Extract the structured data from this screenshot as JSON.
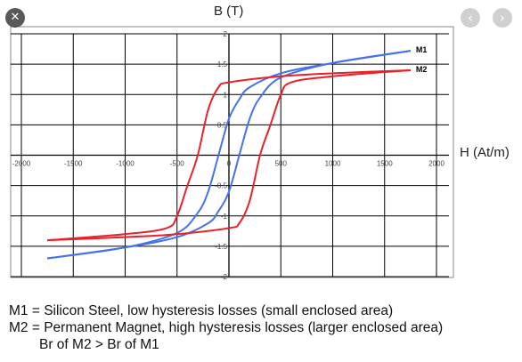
{
  "controls": {
    "close": "✕",
    "prev": "‹",
    "next": "›"
  },
  "captions": [
    "M1 = Silicon Steel, low hysteresis losses (small enclosed area)",
    "M2 = Permanent Magnet, high hysteresis losses (larger enclosed area)",
    "Br of M2 > Br of M1"
  ],
  "colors": {
    "m1": "#4472e8",
    "m2": "#e8212a",
    "grid": "#000000",
    "axis_labels": "#444444"
  },
  "chart_data": {
    "type": "line",
    "xlabel": "H (At/m)",
    "ylabel": "B (T)",
    "xlim": [
      -2000,
      2000
    ],
    "ylim": [
      -2,
      2
    ],
    "x_ticks": [
      "-2000",
      "-1500",
      "-1000",
      "-500",
      "0",
      "500",
      "1000",
      "1500",
      "2000"
    ],
    "y_ticks": [
      "2",
      "1.5",
      "1",
      "0.5",
      "0",
      "-0.5",
      "-1",
      "-1.5",
      "-2"
    ],
    "grid": true,
    "legend": "end-of-line labels",
    "series": [
      {
        "name": "M1",
        "upper": [
          [
            -1750,
            -1.7
          ],
          [
            -1000,
            -1.52
          ],
          [
            -500,
            -1.28
          ],
          [
            -300,
            -0.95
          ],
          [
            -200,
            -0.6
          ],
          [
            -100,
            0
          ],
          [
            0,
            0.6
          ],
          [
            100,
            0.92
          ],
          [
            200,
            1.12
          ],
          [
            500,
            1.35
          ],
          [
            1000,
            1.52
          ],
          [
            1750,
            1.72
          ]
        ],
        "lower": [
          [
            1750,
            1.72
          ],
          [
            1000,
            1.52
          ],
          [
            500,
            1.28
          ],
          [
            300,
            0.95
          ],
          [
            200,
            0.6
          ],
          [
            100,
            0
          ],
          [
            0,
            -0.6
          ],
          [
            -100,
            -0.92
          ],
          [
            -200,
            -1.12
          ],
          [
            -500,
            -1.35
          ],
          [
            -1000,
            -1.52
          ],
          [
            -1750,
            -1.7
          ]
        ]
      },
      {
        "name": "M2",
        "upper": [
          [
            -1750,
            -1.4
          ],
          [
            -1000,
            -1.3
          ],
          [
            -600,
            -1.2
          ],
          [
            -500,
            -1.0
          ],
          [
            -400,
            -0.5
          ],
          [
            -300,
            0
          ],
          [
            -200,
            0.75
          ],
          [
            -100,
            1.12
          ],
          [
            0,
            1.2
          ],
          [
            500,
            1.3
          ],
          [
            1000,
            1.35
          ],
          [
            1750,
            1.4
          ]
        ],
        "lower": [
          [
            1750,
            1.4
          ],
          [
            1000,
            1.3
          ],
          [
            600,
            1.2
          ],
          [
            500,
            1.0
          ],
          [
            400,
            0.5
          ],
          [
            300,
            0
          ],
          [
            200,
            -0.75
          ],
          [
            100,
            -1.12
          ],
          [
            0,
            -1.2
          ],
          [
            -500,
            -1.3
          ],
          [
            -1000,
            -1.35
          ],
          [
            -1750,
            -1.4
          ]
        ]
      }
    ]
  }
}
